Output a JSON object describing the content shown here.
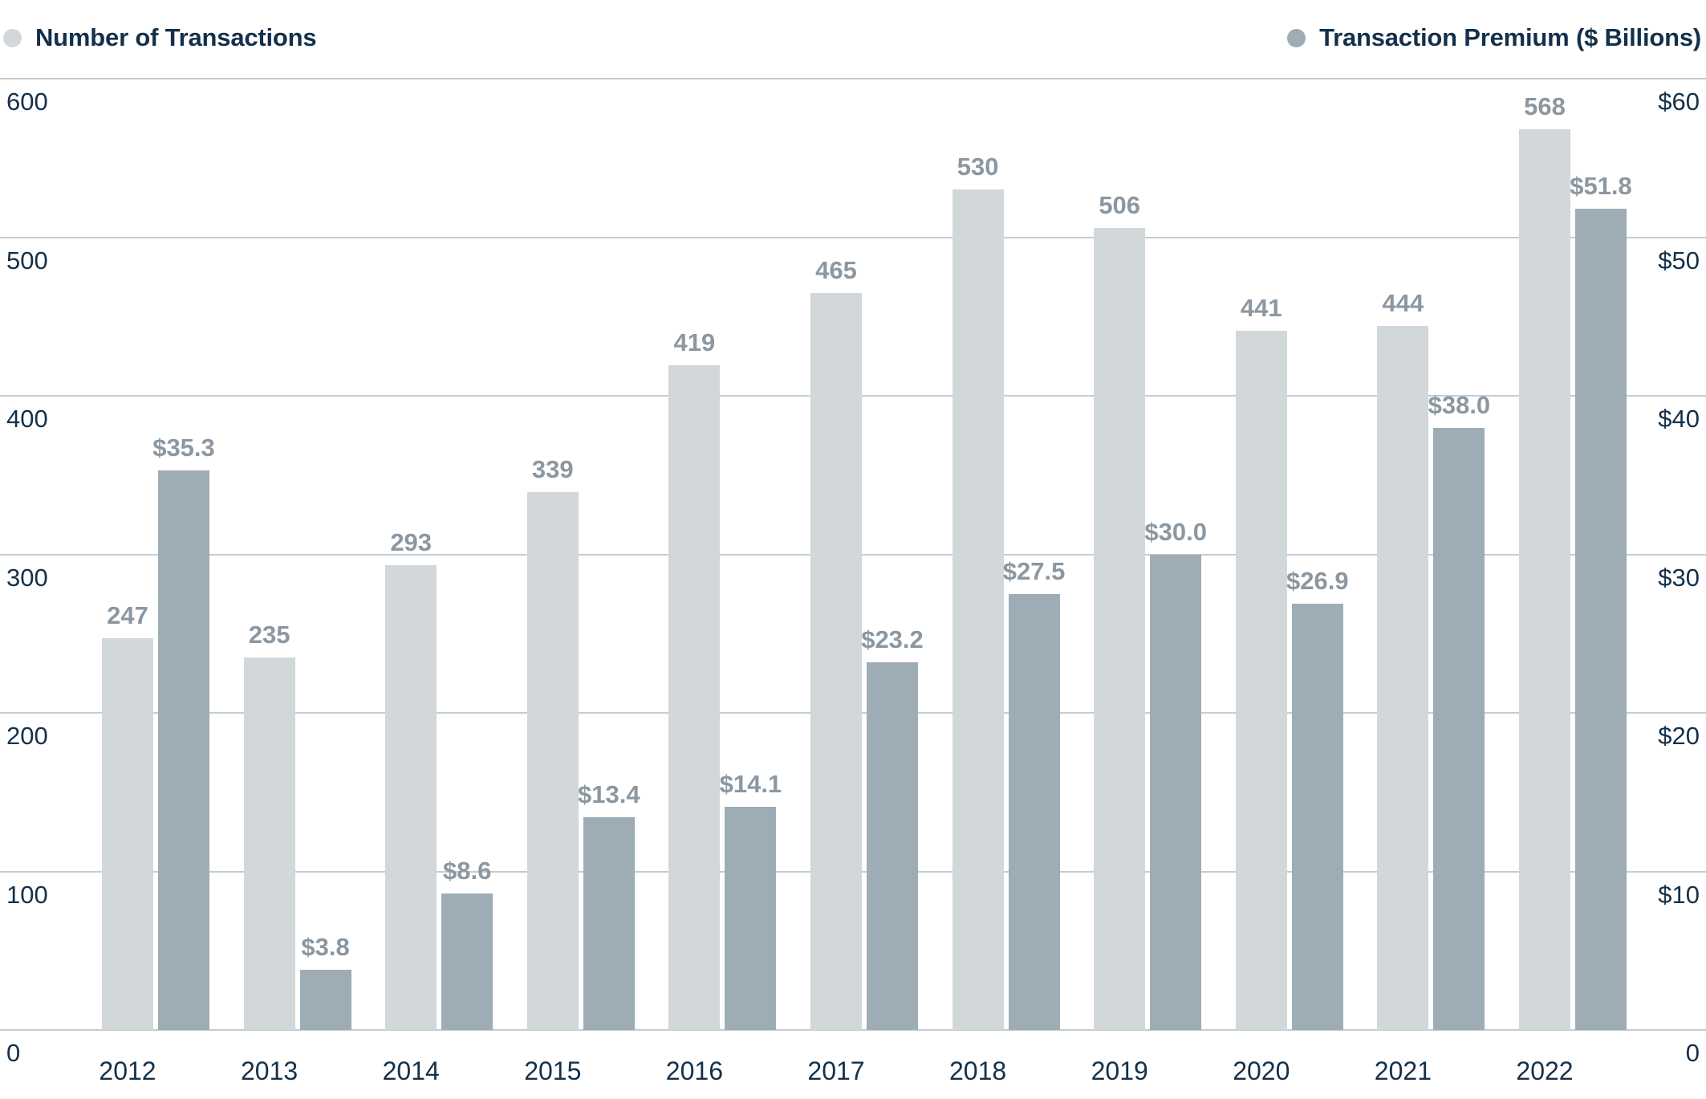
{
  "legend": {
    "left": {
      "label": "Number of Transactions",
      "color": "#d2d7da"
    },
    "right": {
      "label": "Transaction Premium ($ Billions)",
      "color": "#9eacb5"
    }
  },
  "chart_data": {
    "type": "bar",
    "title": "",
    "categories": [
      "2012",
      "2013",
      "2014",
      "2015",
      "2016",
      "2017",
      "2018",
      "2019",
      "2020",
      "2021",
      "2022"
    ],
    "series": [
      {
        "name": "Number of Transactions",
        "axis": "left",
        "color": "#d2d7da",
        "values": [
          247,
          235,
          293,
          339,
          419,
          465,
          530,
          506,
          441,
          444,
          568
        ],
        "labels": [
          "247",
          "235",
          "293",
          "339",
          "419",
          "465",
          "530",
          "506",
          "441",
          "444",
          "568"
        ]
      },
      {
        "name": "Transaction Premium ($ Billions)",
        "axis": "right",
        "color": "#9eacb5",
        "values": [
          35.3,
          3.8,
          8.6,
          13.4,
          14.1,
          23.2,
          27.5,
          30.0,
          26.9,
          38.0,
          51.8
        ],
        "labels": [
          "$35.3",
          "$3.8",
          "$8.6",
          "$13.4",
          "$14.1",
          "$23.2",
          "$27.5",
          "$30.0",
          "$26.9",
          "$38.0",
          "$51.8"
        ]
      }
    ],
    "left_axis": {
      "max": 600,
      "ticks": [
        0,
        100,
        200,
        300,
        400,
        500,
        600
      ],
      "labels": [
        "0",
        "100",
        "200",
        "300",
        "400",
        "500",
        "600"
      ]
    },
    "right_axis": {
      "max": 60,
      "ticks": [
        0,
        10,
        20,
        30,
        40,
        50,
        60
      ],
      "labels": [
        "0",
        "$10",
        "$20",
        "$30",
        "$40",
        "$50",
        "$60"
      ]
    },
    "grid": true,
    "legend_position": "top",
    "value_label_color": "#8b97a1",
    "axis_text_color": "#14304a",
    "gridline_color": "#c6ccd0"
  }
}
